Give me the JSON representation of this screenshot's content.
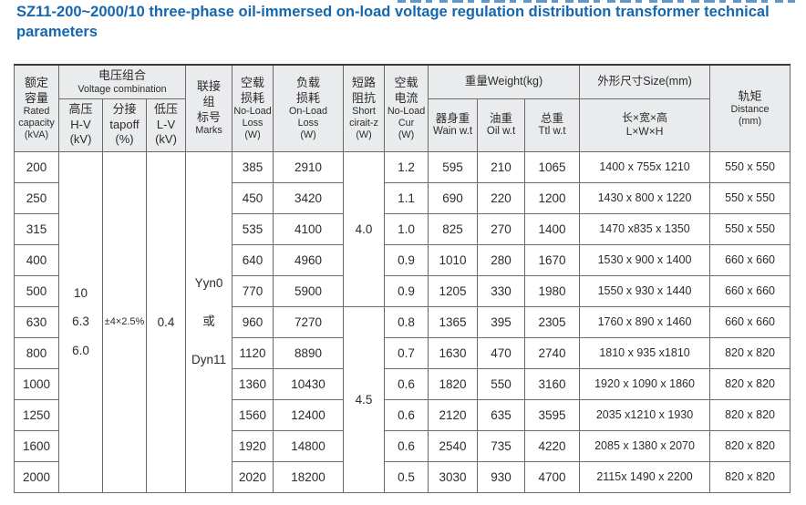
{
  "title": "SZ11-200~2000/10 three-phase oil-immersed on-load voltage regulation distribution transformer technical parameters",
  "accent_color": "#1467ae",
  "header_bg_color": "#e9ebed",
  "table": {
    "header": {
      "rated_zh": "额定\n容量",
      "rated_en": "Rated\ncapacity\n(kVA)",
      "voltage_zh": "电压组合",
      "voltage_en": "Voltage combination",
      "hv_zh": "高压",
      "hv_en": "H-V\n(kV)",
      "tap_zh": "分接",
      "tap_en": "tapoff\n(%)",
      "lv_zh": "低压",
      "lv_en": "L-V\n(kV)",
      "marks_zh": "联接\n组\n标号",
      "marks_en": "Marks",
      "noload_loss_zh": "空载\n损耗",
      "noload_loss_en": "No-Load\nLoss\n(W)",
      "onload_loss_zh": "负载\n损耗",
      "onload_loss_en": "On-Load\nLoss\n(W)",
      "short_zh": "短路\n阻抗",
      "short_en": "Short\ncirait-z\n(W)",
      "noload_cur_zh": "空载\n电流",
      "noload_cur_en": "No-Load\nCur\n(W)",
      "weight": "重量Weight(kg)",
      "body_weight_zh": "器身重",
      "body_weight_en": "Wain w.t",
      "oil_weight_zh": "油重",
      "oil_weight_en": "Oil w.t",
      "total_weight_zh": "总重",
      "total_weight_en": "Ttl w.t",
      "size": "外形尺寸Size(mm)",
      "lwh": "长×宽×高\nL×W×H",
      "distance_zh": "轨矩",
      "distance_en": "Distance\n(mm)"
    },
    "body": [
      [
        {
          "t": "200"
        },
        {
          "t": "10\n6.3\n6.0",
          "rs": 11,
          "cls": "spread"
        },
        {
          "t": "±4×2.5%",
          "rs": 11,
          "cls": "small"
        },
        {
          "t": "0.4",
          "rs": 11
        },
        {
          "t": "Yyn0\n或\nDyn11",
          "rs": 11,
          "cls": "spread2"
        },
        {
          "t": "385"
        },
        {
          "t": "2910"
        },
        {
          "t": "4.0",
          "rs": 5
        },
        {
          "t": "1.2"
        },
        {
          "t": "595"
        },
        {
          "t": "210"
        },
        {
          "t": "1065"
        },
        {
          "t": "1400 x 755x 1210"
        },
        {
          "t": "550 x 550"
        }
      ],
      [
        {
          "t": "250"
        },
        {
          "t": "450"
        },
        {
          "t": "3420"
        },
        {
          "t": "1.1"
        },
        {
          "t": "690"
        },
        {
          "t": "220"
        },
        {
          "t": "1200"
        },
        {
          "t": "1430 x 800 x 1220"
        },
        {
          "t": "550 x 550"
        }
      ],
      [
        {
          "t": "315"
        },
        {
          "t": "535"
        },
        {
          "t": "4100"
        },
        {
          "t": "1.0"
        },
        {
          "t": "825"
        },
        {
          "t": "270"
        },
        {
          "t": "1400"
        },
        {
          "t": "1470 x835 x 1350"
        },
        {
          "t": "550 x 550"
        }
      ],
      [
        {
          "t": "400"
        },
        {
          "t": "640"
        },
        {
          "t": "4960"
        },
        {
          "t": "0.9"
        },
        {
          "t": "1010"
        },
        {
          "t": "280"
        },
        {
          "t": "1670"
        },
        {
          "t": "1530 x 900 x 1400"
        },
        {
          "t": "660 x 660"
        }
      ],
      [
        {
          "t": "500"
        },
        {
          "t": "770"
        },
        {
          "t": "5900"
        },
        {
          "t": "0.9"
        },
        {
          "t": "1205"
        },
        {
          "t": "330"
        },
        {
          "t": "1980"
        },
        {
          "t": "1550 x 930 x 1440"
        },
        {
          "t": "660 x 660"
        }
      ],
      [
        {
          "t": "630"
        },
        {
          "t": "960"
        },
        {
          "t": "7270"
        },
        {
          "t": "4.5",
          "rs": 6
        },
        {
          "t": "0.8"
        },
        {
          "t": "1365"
        },
        {
          "t": "395"
        },
        {
          "t": "2305"
        },
        {
          "t": "1760 x 890 x 1460"
        },
        {
          "t": "660 x 660"
        }
      ],
      [
        {
          "t": "800"
        },
        {
          "t": "1120"
        },
        {
          "t": "8890"
        },
        {
          "t": "0.7"
        },
        {
          "t": "1630"
        },
        {
          "t": "470"
        },
        {
          "t": "2740"
        },
        {
          "t": "1810 x 935 x1810"
        },
        {
          "t": "820 x 820"
        }
      ],
      [
        {
          "t": "1000"
        },
        {
          "t": "1360"
        },
        {
          "t": "10430"
        },
        {
          "t": "0.6"
        },
        {
          "t": "1820"
        },
        {
          "t": "550"
        },
        {
          "t": "3160"
        },
        {
          "t": "1920 x 1090 x 1860"
        },
        {
          "t": "820 x 820"
        }
      ],
      [
        {
          "t": "1250"
        },
        {
          "t": "1560"
        },
        {
          "t": "12400"
        },
        {
          "t": "0.6"
        },
        {
          "t": "2120"
        },
        {
          "t": "635"
        },
        {
          "t": "3595"
        },
        {
          "t": "2035 x1210 x 1930"
        },
        {
          "t": "820 x 820"
        }
      ],
      [
        {
          "t": "1600"
        },
        {
          "t": "1920"
        },
        {
          "t": "14800"
        },
        {
          "t": "0.6"
        },
        {
          "t": "2540"
        },
        {
          "t": "735"
        },
        {
          "t": "4220"
        },
        {
          "t": "2085 x 1380 x 2070"
        },
        {
          "t": "820 x 820"
        }
      ],
      [
        {
          "t": "2000"
        },
        {
          "t": "2020"
        },
        {
          "t": "18200"
        },
        {
          "t": "0.5"
        },
        {
          "t": "3030"
        },
        {
          "t": "930"
        },
        {
          "t": "4700"
        },
        {
          "t": "2115x 1490 x 2200"
        },
        {
          "t": "820 x 820"
        }
      ]
    ]
  }
}
